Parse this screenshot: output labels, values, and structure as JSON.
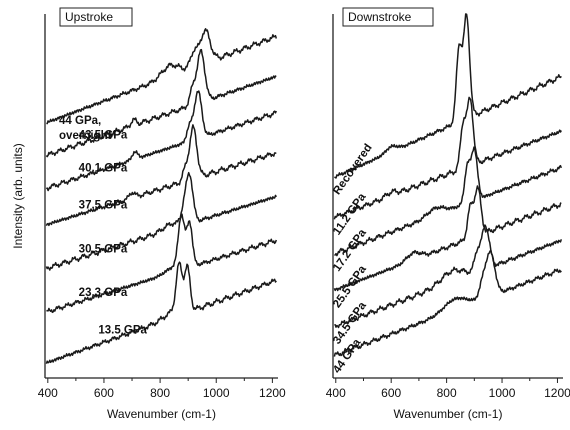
{
  "chart_data": [
    {
      "type": "line",
      "title": "Upstroke",
      "xlabel": "Wavenumber (cm-1)",
      "ylabel": "Intensity (arb. units)",
      "xlim": [
        390,
        1220
      ],
      "xticks": [
        "400",
        "600",
        "800",
        "1000",
        "1200"
      ],
      "xtick_values": [
        400,
        600,
        800,
        1000,
        1200
      ],
      "ylim": [
        0,
        100
      ],
      "series": [
        {
          "name": "13.5 GPa",
          "label": "13.5 GPa",
          "baseline": 4,
          "rise": 23,
          "label_x": 580,
          "label_y_offset": -1,
          "peaks": [
            [
              868,
              13,
              11
            ],
            [
              897,
              12,
              10
            ],
            [
              840,
              1.5,
              30
            ]
          ]
        },
        {
          "name": "23.3 GPa",
          "label": "23.3 GPa",
          "baseline": 18,
          "rise": 20,
          "label_x": 510,
          "label_y_offset": 4,
          "peaks": [
            [
              876,
              14,
              11
            ],
            [
              905,
              12,
              10
            ],
            [
              850,
              1.5,
              30
            ]
          ]
        },
        {
          "name": "30.5 GPa",
          "label": "30.5 GPa",
          "baseline": 30,
          "rise": 20,
          "label_x": 510,
          "label_y_offset": 4,
          "peaks": [
            [
              905,
              13,
              12
            ],
            [
              885,
              4,
              10
            ],
            [
              840,
              1.5,
              30
            ]
          ]
        },
        {
          "name": "37.5 GPa",
          "label": "37.5 GPa",
          "baseline": 42,
          "rise": 20,
          "label_x": 510,
          "label_y_offset": 4,
          "peaks": [
            [
              918,
              14,
              13
            ],
            [
              890,
              3,
              10
            ],
            [
              700,
              1.5,
              10
            ]
          ]
        },
        {
          "name": "40.1 GPa",
          "label": "40.1 GPa",
          "baseline": 52,
          "rise": 21,
          "label_x": 510,
          "label_y_offset": 4,
          "peaks": [
            [
              935,
              13,
              13
            ],
            [
              905,
              4,
              10
            ],
            [
              710,
              2,
              10
            ]
          ]
        },
        {
          "name": "43.5 GPa",
          "label": "43.5 GPa",
          "baseline": 61,
          "rise": 22,
          "label_x": 510,
          "label_y_offset": 4,
          "peaks": [
            [
              945,
              14,
              14
            ],
            [
              915,
              4,
              10
            ],
            [
              705,
              1.5,
              10
            ]
          ]
        },
        {
          "name": "44 GPa, overnight",
          "label": "44 GPa,",
          "label2": "overnight",
          "baseline": 70,
          "rise": 24,
          "label_x": 440,
          "label_y_offset": 16,
          "peaks": [
            [
              960,
              9,
              18
            ],
            [
              920,
              4,
              12
            ],
            [
              835,
              3,
              30
            ]
          ]
        }
      ]
    },
    {
      "type": "line",
      "title": "Downstroke",
      "xlabel": "Wavenumber (cm-1)",
      "ylabel": "",
      "xlim": [
        390,
        1220
      ],
      "xticks": [
        "400",
        "600",
        "800",
        "1000",
        "1200"
      ],
      "xtick_values": [
        400,
        600,
        800,
        1000,
        1200
      ],
      "ylim": [
        0,
        100
      ],
      "series": [
        {
          "name": "44 GPa",
          "label": "44 GPa",
          "baseline": 6,
          "rise": 24,
          "label_x": 410,
          "label_angle": -55,
          "peaks": [
            [
              958,
              12,
              16
            ],
            [
              930,
              4,
              12
            ],
            [
              830,
              3,
              40
            ]
          ]
        },
        {
          "name": "34.5 GPa",
          "label": "34.5 GPa",
          "baseline": 14,
          "rise": 24,
          "label_x": 410,
          "label_angle": -55,
          "peaks": [
            [
              940,
              12,
              14
            ],
            [
              910,
              5,
              10
            ],
            [
              820,
              3,
              40
            ]
          ]
        },
        {
          "name": "25.5 GPa",
          "label": "25.5 GPa",
          "baseline": 24,
          "rise": 24,
          "label_x": 410,
          "label_angle": -55,
          "peaks": [
            [
              912,
              13,
              12
            ],
            [
              885,
              8,
              10
            ],
            [
              680,
              2,
              25
            ]
          ]
        },
        {
          "name": "17.2 GPa",
          "label": "17.2 GPa",
          "baseline": 34,
          "rise": 24,
          "label_x": 410,
          "label_angle": -55,
          "peaks": [
            [
              900,
              14,
              11
            ],
            [
              875,
              10,
              10
            ],
            [
              760,
              2,
              30
            ]
          ]
        },
        {
          "name": "11.2 GPa",
          "label": "11.2 GPa",
          "baseline": 44,
          "rise": 24,
          "label_x": 410,
          "label_angle": -55,
          "peaks": [
            [
              885,
              18,
              11
            ],
            [
              860,
              12,
              10
            ],
            [
              600,
              1,
              20
            ]
          ]
        },
        {
          "name": "Recovered",
          "label": "Recovered",
          "baseline": 55,
          "rise": 28,
          "label_x": 410,
          "label_angle": -55,
          "peaks": [
            [
              872,
              28,
              11
            ],
            [
              845,
              20,
              10
            ],
            [
              600,
              1.5,
              20
            ]
          ]
        }
      ]
    }
  ]
}
